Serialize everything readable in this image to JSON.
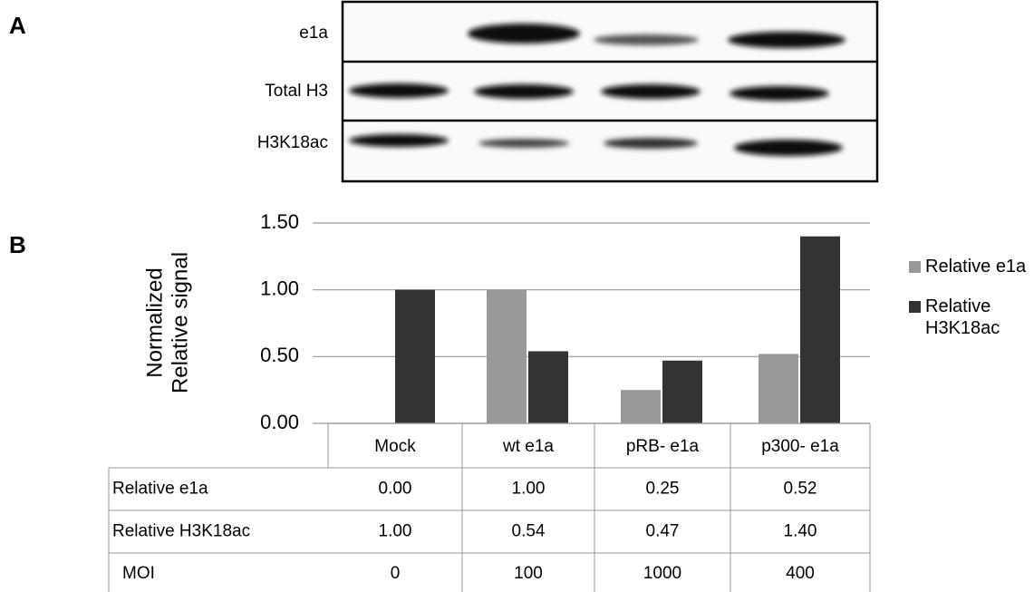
{
  "panel_labels": [
    "A",
    "B"
  ],
  "blot": {
    "rows": [
      "e1a",
      "Total H3",
      "H3K18ac"
    ]
  },
  "chart_data": {
    "type": "bar",
    "ylabel": [
      "Normalized",
      "Relative signal"
    ],
    "categories": [
      "Mock",
      "wt e1a",
      "pRB- e1a",
      "p300- e1a"
    ],
    "series": [
      {
        "name": "Relative e1a",
        "color": "#999999",
        "values": [
          0,
          1,
          0.25,
          0.52
        ],
        "value_labels": [
          "0.00",
          "1.00",
          "0.25",
          "0.52"
        ]
      },
      {
        "name": "Relative H3K18ac",
        "color": "#333333",
        "values": [
          1,
          0.54,
          0.47,
          1.4
        ],
        "value_labels": [
          "1.00",
          "0.54",
          "0.47",
          "1.40"
        ]
      }
    ],
    "ylim": [
      0,
      1.5
    ],
    "yticks": [
      {
        "value": 0,
        "label": "0.00"
      },
      {
        "value": 0.5,
        "label": "0.50"
      },
      {
        "value": 1,
        "label": "1.00"
      },
      {
        "value": 1.5,
        "label": "1.50"
      }
    ],
    "grid": true,
    "moi": {
      "label": "MOI",
      "values": [
        0,
        100,
        1000,
        400
      ]
    }
  }
}
